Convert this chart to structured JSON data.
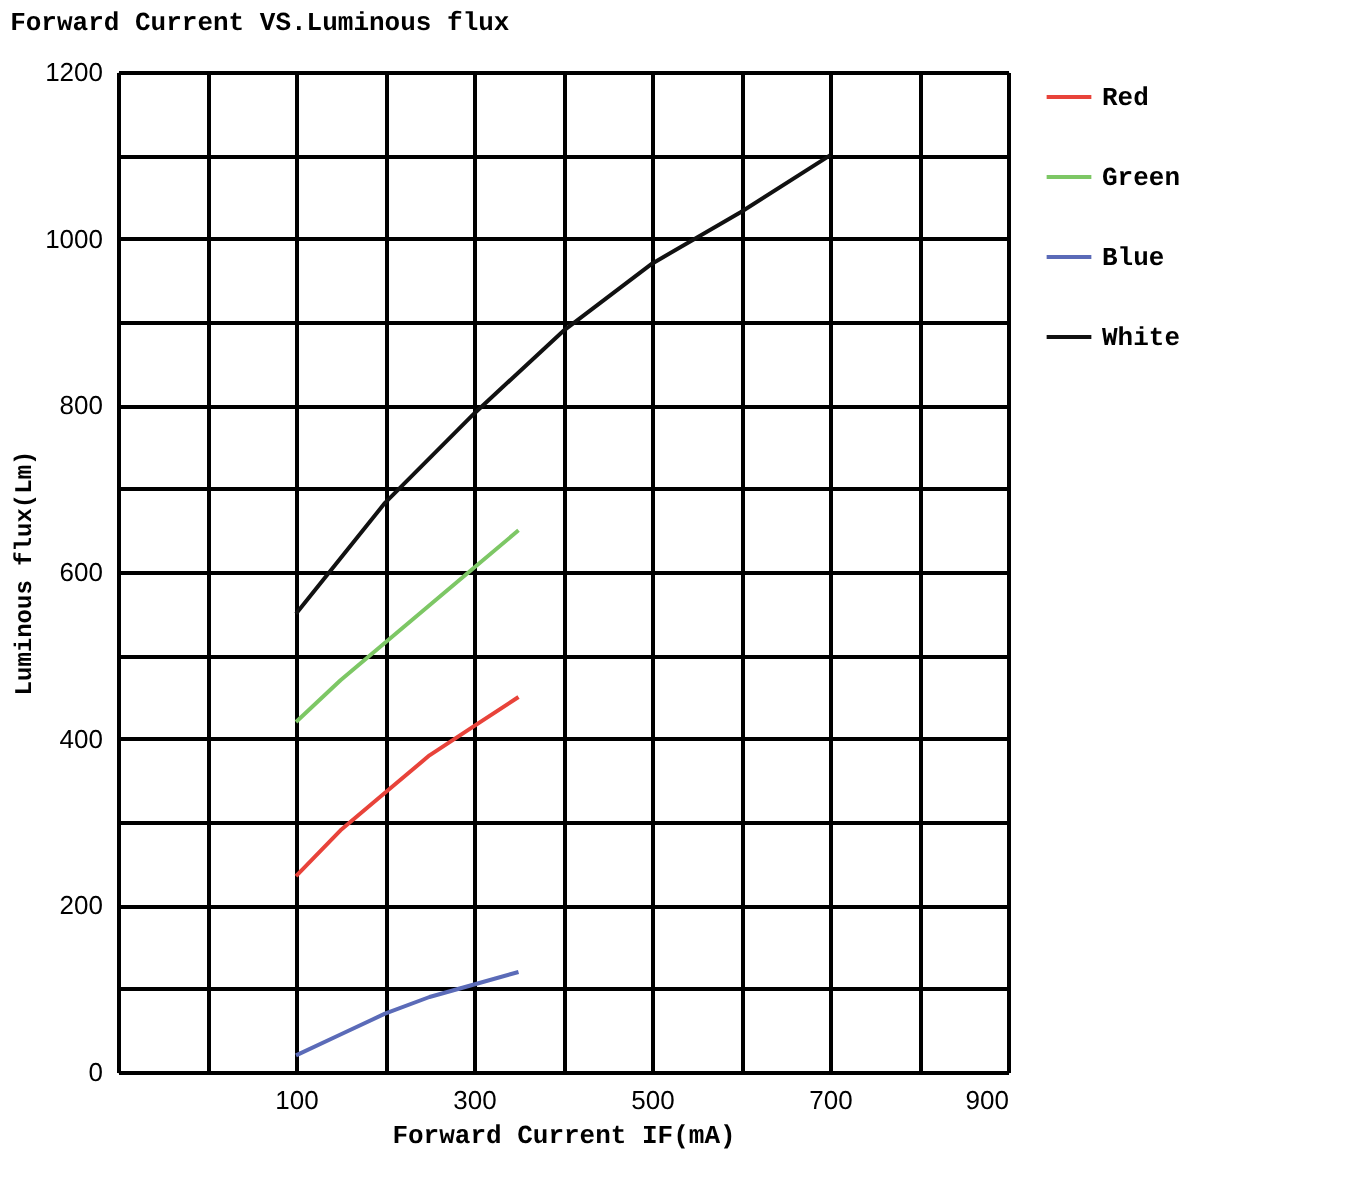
{
  "chart_data": {
    "type": "line",
    "title": "Forward Current VS.Luminous flux",
    "xlabel": "Forward Current IF(mA)",
    "ylabel": "Luminous flux(Lm)",
    "xlim": [
      -100,
      900
    ],
    "xticks": [
      {
        "value": -100,
        "label": null
      },
      {
        "value": 0,
        "label": null
      },
      100,
      {
        "value": 200,
        "label": null
      },
      300,
      {
        "value": 400,
        "label": null
      },
      500,
      {
        "value": 600,
        "label": null
      },
      700,
      {
        "value": 800,
        "label": null
      },
      900
    ],
    "ylim": [
      0,
      1200
    ],
    "yticks": [
      0,
      {
        "value": 100,
        "label": null
      },
      200,
      {
        "value": 300,
        "label": null
      },
      400,
      {
        "value": 500,
        "label": null
      },
      600,
      {
        "value": 700,
        "label": null
      },
      800,
      {
        "value": 900,
        "label": null
      },
      1000,
      {
        "value": 1100,
        "label": null
      },
      1200
    ],
    "grid": true,
    "legend": "right",
    "line_style": "solid",
    "series": [
      {
        "name": "Red",
        "color": "#e8433a",
        "x": [
          100,
          150,
          200,
          250,
          300,
          350
        ],
        "values": [
          235,
          290,
          335,
          380,
          415,
          450
        ]
      },
      {
        "name": "Green",
        "color": "#7dc765",
        "x": [
          100,
          150,
          200,
          250,
          300,
          350
        ],
        "values": [
          420,
          470,
          515,
          560,
          605,
          650
        ]
      },
      {
        "name": "Blue",
        "color": "#5b6bb8",
        "x": [
          100,
          150,
          200,
          250,
          300,
          350
        ],
        "values": [
          20,
          45,
          70,
          90,
          105,
          120
        ]
      },
      {
        "name": "White",
        "color": "#111111",
        "x": [
          100,
          200,
          300,
          400,
          500,
          600,
          700
        ],
        "values": [
          550,
          683,
          790,
          889,
          970,
          1032,
          1100
        ]
      }
    ]
  }
}
